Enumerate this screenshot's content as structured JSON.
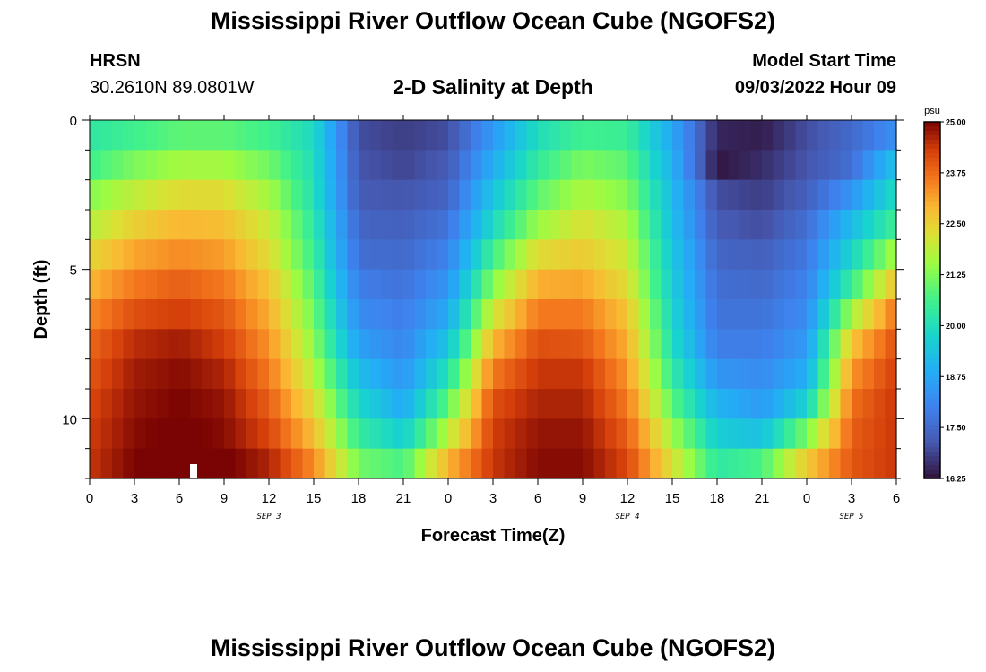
{
  "title": "Mississippi River Outflow Ocean Cube (NGOFS2)",
  "title_bottom": "Mississippi River Outflow Ocean Cube (NGOFS2)",
  "station": {
    "name": "HRSN",
    "coords": "30.2610N  89.0801W"
  },
  "subtitle": "2-D Salinity at Depth",
  "model": {
    "label": "Model Start Time",
    "value": "09/03/2022 Hour 09"
  },
  "chart_data": {
    "type": "heatmap",
    "variable": "salinity",
    "unit": "psu",
    "xlabel": "Forecast Time(Z)",
    "ylabel": "Depth (ft)",
    "x_range_hours": [
      0,
      54
    ],
    "x_tick_labels": [
      "0",
      "3",
      "6",
      "9",
      "12",
      "15",
      "18",
      "21",
      "0",
      "3",
      "6",
      "9",
      "12",
      "15",
      "18",
      "21",
      "0",
      "3",
      "6"
    ],
    "day_labels": [
      {
        "text": "SEP 3",
        "hour": 12
      },
      {
        "text": "SEP 4",
        "hour": 36
      },
      {
        "text": "SEP 5",
        "hour": 51
      }
    ],
    "depth_range_ft": [
      0,
      12
    ],
    "y_ticks": [
      0,
      5,
      10
    ],
    "colorbar": {
      "min": 16.25,
      "max": 25.0,
      "tick_labels": [
        "25.00",
        "23.75",
        "22.50",
        "21.25",
        "20.00",
        "18.75",
        "17.50",
        "16.25"
      ]
    },
    "depth_levels_ft": [
      0.5,
      1.5,
      2.5,
      3.5,
      4.5,
      5.5,
      6.5,
      7.5,
      8.5,
      9.5,
      10.5,
      11.5
    ],
    "time_hours": [
      0,
      3,
      6,
      9,
      12,
      15,
      18,
      21,
      24,
      27,
      30,
      33,
      36,
      39,
      42,
      45,
      48,
      51,
      54
    ],
    "salinity": [
      [
        20.3,
        20.6,
        20.9,
        20.9,
        20.6,
        19.9,
        17.0,
        16.8,
        17.0,
        18.5,
        20.0,
        20.6,
        20.5,
        18.8,
        16.5,
        16.4,
        17.0,
        17.5,
        18.3
      ],
      [
        20.6,
        21.2,
        21.6,
        21.6,
        21.1,
        20.0,
        17.1,
        16.9,
        17.2,
        18.9,
        20.4,
        21.2,
        20.9,
        19.0,
        16.3,
        16.6,
        17.1,
        17.6,
        19.4
      ],
      [
        21.3,
        21.9,
        22.3,
        22.3,
        21.6,
        20.1,
        17.2,
        17.1,
        17.4,
        19.4,
        20.9,
        21.7,
        21.3,
        19.2,
        17.0,
        16.8,
        17.3,
        18.4,
        20.0
      ],
      [
        21.8,
        22.5,
        22.9,
        22.8,
        22.0,
        20.3,
        17.4,
        17.3,
        17.7,
        19.9,
        21.5,
        22.2,
        21.7,
        19.3,
        17.2,
        17.0,
        17.6,
        19.2,
        20.6
      ],
      [
        22.4,
        23.1,
        23.4,
        23.2,
        22.3,
        20.5,
        17.6,
        17.5,
        18.0,
        20.6,
        22.3,
        22.6,
        22.0,
        19.5,
        17.4,
        17.3,
        17.8,
        19.8,
        21.7
      ],
      [
        22.9,
        23.6,
        23.9,
        23.6,
        22.7,
        20.8,
        17.9,
        17.7,
        18.4,
        21.3,
        23.0,
        23.1,
        22.3,
        19.6,
        17.6,
        17.5,
        18.0,
        20.5,
        22.8
      ],
      [
        23.4,
        24.1,
        24.3,
        24.0,
        23.0,
        21.1,
        18.2,
        17.9,
        18.8,
        22.1,
        23.6,
        23.6,
        22.7,
        19.8,
        17.7,
        17.7,
        18.2,
        21.6,
        23.7
      ],
      [
        23.8,
        24.5,
        24.7,
        24.3,
        23.3,
        21.4,
        18.6,
        18.1,
        19.4,
        22.9,
        24.1,
        24.0,
        23.0,
        20.0,
        17.9,
        17.9,
        18.5,
        22.7,
        24.1
      ],
      [
        24.0,
        24.7,
        24.9,
        24.6,
        23.6,
        21.8,
        19.2,
        18.4,
        20.1,
        23.6,
        24.4,
        24.4,
        23.3,
        20.4,
        18.4,
        18.2,
        18.9,
        23.3,
        24.3
      ],
      [
        24.2,
        24.8,
        25.0,
        24.8,
        23.9,
        22.3,
        19.8,
        18.8,
        20.9,
        24.1,
        24.6,
        24.6,
        23.6,
        20.9,
        19.0,
        18.5,
        19.7,
        23.7,
        24.4
      ],
      [
        24.3,
        24.9,
        25.1,
        24.9,
        24.2,
        22.8,
        20.4,
        19.6,
        21.8,
        24.3,
        24.8,
        24.8,
        23.9,
        21.6,
        19.6,
        19.3,
        21.2,
        23.9,
        24.4
      ],
      [
        24.4,
        25.0,
        25.2,
        25.1,
        24.6,
        23.4,
        21.1,
        20.7,
        22.9,
        24.4,
        24.9,
        24.9,
        24.2,
        22.2,
        20.3,
        20.7,
        22.6,
        24.0,
        24.4
      ]
    ]
  }
}
